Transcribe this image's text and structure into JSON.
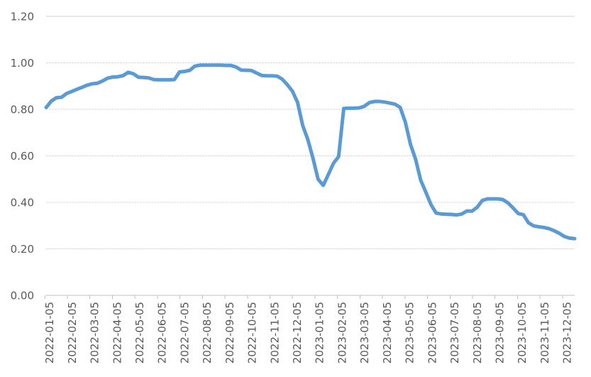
{
  "chart_data": {
    "type": "line",
    "title": "",
    "legend": "none",
    "grid": true,
    "background": "#FFFFFF",
    "colors": {
      "line": "#5B9BD5",
      "gridline": "#D9D9D9",
      "top_gridline": "#D0D0D0",
      "axis_line": "#BFBFBF",
      "axis_text": "#595959"
    },
    "y_axis": {
      "min": 0.0,
      "max": 1.2,
      "step": 0.2,
      "tick_labels": [
        "0.00",
        "0.20",
        "0.40",
        "0.60",
        "0.80",
        "1.00",
        "1.20"
      ]
    },
    "x_axis": {
      "tick_labels": [
        "2022-01-05",
        "2022-02-05",
        "2022-03-05",
        "2022-04-05",
        "2022-05-05",
        "2022-06-05",
        "2022-07-05",
        "2022-08-05",
        "2022-09-05",
        "2022-10-05",
        "2022-11-05",
        "2022-12-05",
        "2023-01-05",
        "2023-02-05",
        "2023-03-05",
        "2023-04-05",
        "2023-05-05",
        "2023-06-05",
        "2023-07-05",
        "2023-08-05",
        "2023-09-05",
        "2023-10-05",
        "2023-11-05",
        "2023-12-05"
      ],
      "label_rotation_deg": 90
    },
    "series": [
      {
        "name": "series-1",
        "color": "#5B9BD5",
        "sampling": "weekly points spanning the labelled date range",
        "values": [
          0.808,
          0.835,
          0.85,
          0.852,
          0.868,
          0.877,
          0.886,
          0.895,
          0.904,
          0.91,
          0.912,
          0.922,
          0.934,
          0.939,
          0.94,
          0.945,
          0.959,
          0.953,
          0.938,
          0.937,
          0.935,
          0.928,
          0.927,
          0.927,
          0.927,
          0.928,
          0.961,
          0.963,
          0.968,
          0.986,
          0.99,
          0.99,
          0.99,
          0.99,
          0.99,
          0.989,
          0.989,
          0.982,
          0.969,
          0.968,
          0.967,
          0.956,
          0.946,
          0.944,
          0.944,
          0.943,
          0.93,
          0.906,
          0.878,
          0.83,
          0.73,
          0.67,
          0.59,
          0.5,
          0.473,
          0.52,
          0.568,
          0.597,
          0.804,
          0.805,
          0.805,
          0.806,
          0.813,
          0.829,
          0.834,
          0.834,
          0.831,
          0.827,
          0.822,
          0.808,
          0.745,
          0.65,
          0.585,
          0.495,
          0.444,
          0.39,
          0.354,
          0.35,
          0.349,
          0.348,
          0.346,
          0.35,
          0.363,
          0.362,
          0.379,
          0.408,
          0.415,
          0.415,
          0.415,
          0.412,
          0.398,
          0.376,
          0.352,
          0.347,
          0.312,
          0.299,
          0.295,
          0.292,
          0.287,
          0.278,
          0.267,
          0.253,
          0.246,
          0.244
        ]
      }
    ]
  }
}
